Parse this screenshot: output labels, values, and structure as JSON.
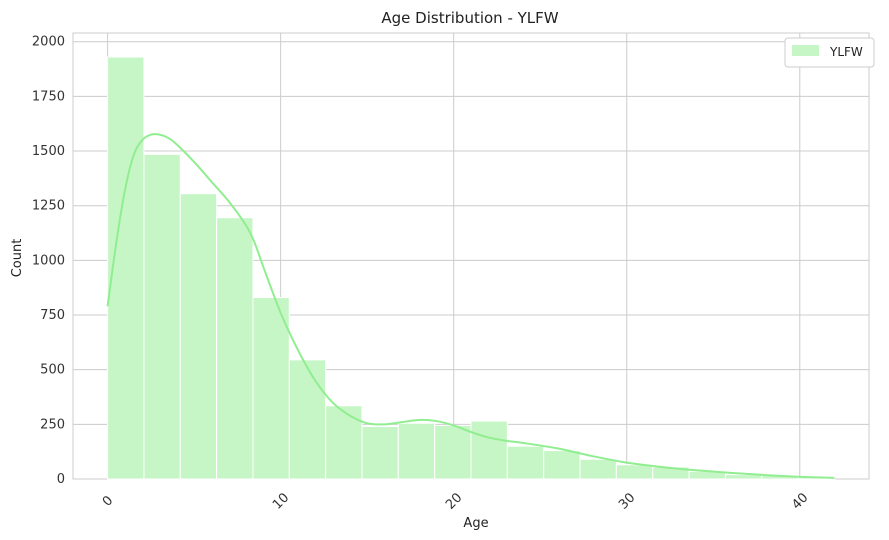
{
  "chart_data": {
    "type": "bar",
    "title": "Age Distribution - YLFW",
    "xlabel": "Age",
    "ylabel": "Count",
    "xlim": [
      -2,
      44
    ],
    "ylim": [
      0,
      2040
    ],
    "x_ticks": [
      0,
      10,
      20,
      30,
      40
    ],
    "x_tick_labels": [
      "0",
      "10",
      "20",
      "30",
      "40"
    ],
    "y_ticks": [
      0,
      250,
      500,
      750,
      1000,
      1250,
      1500,
      1750,
      2000
    ],
    "y_tick_labels": [
      "0",
      "250",
      "500",
      "750",
      "1000",
      "1250",
      "1500",
      "1750",
      "2000"
    ],
    "grid": true,
    "legend_position": "top-right",
    "colors": {
      "bar": "#c6f6c6",
      "kde": "#90ee90",
      "grid": "#cccccc"
    },
    "series": [
      {
        "name": "YLFW",
        "type": "histogram",
        "bin_edges": [
          0,
          2.1,
          4.2,
          6.3,
          8.4,
          10.5,
          12.6,
          14.7,
          16.8,
          18.9,
          21.0,
          23.1,
          25.2,
          27.3,
          29.4,
          31.5,
          33.6,
          35.7,
          37.8,
          39.9,
          42.0
        ],
        "counts": [
          1930,
          1485,
          1305,
          1195,
          830,
          545,
          335,
          240,
          255,
          245,
          265,
          150,
          130,
          90,
          65,
          55,
          35,
          20,
          15,
          10
        ]
      },
      {
        "name": "YLFW KDE",
        "type": "line",
        "x": [
          0,
          0.5,
          1,
          1.5,
          2,
          2.5,
          3,
          3.5,
          4,
          5,
          6,
          7,
          8,
          8.5,
          9,
          10,
          11,
          12,
          13,
          14,
          15,
          16,
          17,
          18,
          19,
          20,
          21,
          22,
          23,
          24,
          26,
          28,
          30,
          32,
          34,
          36,
          38,
          40,
          42
        ],
        "y": [
          790,
          1080,
          1320,
          1480,
          1550,
          1575,
          1575,
          1560,
          1530,
          1450,
          1360,
          1270,
          1160,
          1080,
          970,
          760,
          590,
          450,
          350,
          290,
          255,
          250,
          260,
          270,
          265,
          245,
          215,
          190,
          175,
          165,
          140,
          105,
          75,
          55,
          40,
          28,
          18,
          10,
          5
        ]
      }
    ]
  }
}
